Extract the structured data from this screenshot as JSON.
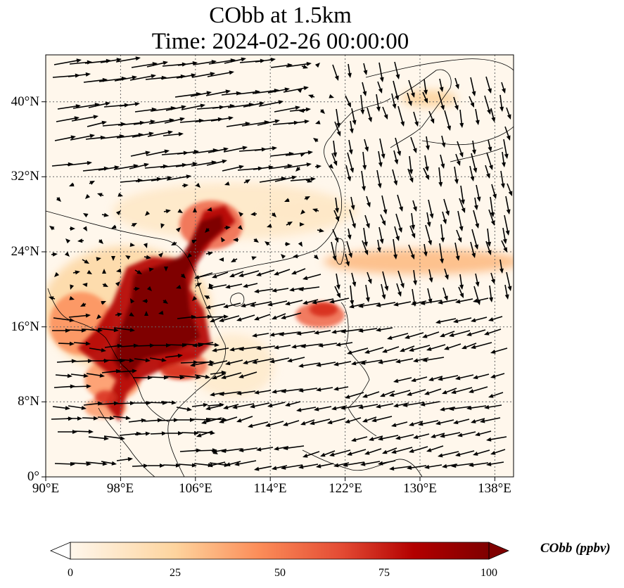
{
  "title": {
    "line1": "CObb at 1.5km",
    "line2": "Time: 2024-02-26 00:00:00"
  },
  "map": {
    "lon_range": [
      90,
      140
    ],
    "lat_range": [
      0,
      45
    ],
    "lon_ticks": [
      {
        "value": 90,
        "label": "90°E"
      },
      {
        "value": 98,
        "label": "98°E"
      },
      {
        "value": 106,
        "label": "106°E"
      },
      {
        "value": 114,
        "label": "114°E"
      },
      {
        "value": 122,
        "label": "122°E"
      },
      {
        "value": 130,
        "label": "130°E"
      },
      {
        "value": 138,
        "label": "138°E"
      }
    ],
    "lat_ticks": [
      {
        "value": 0,
        "label": "0°"
      },
      {
        "value": 8,
        "label": "8°N"
      },
      {
        "value": 16,
        "label": "16°N"
      },
      {
        "value": 24,
        "label": "24°N"
      },
      {
        "value": 32,
        "label": "32°N"
      },
      {
        "value": 40,
        "label": "40°N"
      }
    ],
    "gridlines": true,
    "colormap": "OrRd",
    "colors": {
      "low": "#fff7ec",
      "mid": "#fdbb84",
      "high": "#d7301f",
      "max": "#7f0000",
      "wind_arrows": "#000000",
      "coastline": "#000000"
    }
  },
  "colorbar": {
    "label": "CObb (ppbv)",
    "min": 0,
    "max": 100,
    "extend": "both",
    "ticks": [
      {
        "value": 0,
        "label": "0"
      },
      {
        "value": 25,
        "label": "25"
      },
      {
        "value": 50,
        "label": "50"
      },
      {
        "value": 75,
        "label": "75"
      },
      {
        "value": 100,
        "label": "100"
      }
    ]
  }
}
